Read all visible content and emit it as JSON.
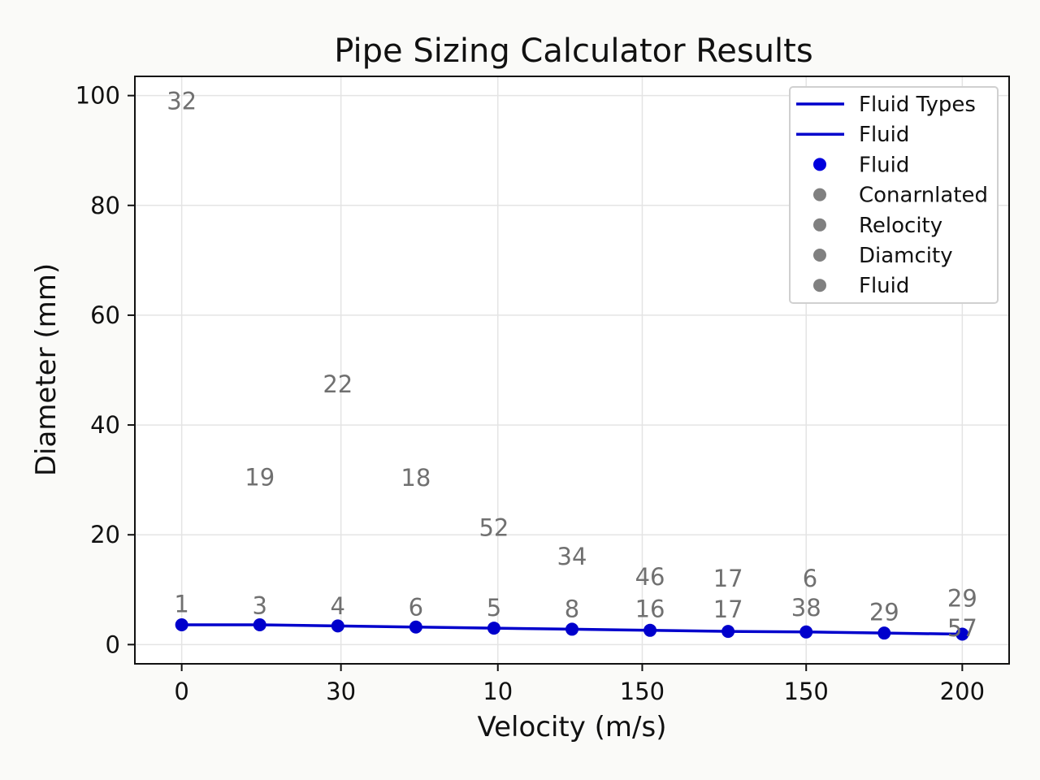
{
  "chart_data": {
    "type": "line",
    "title": "Pipe Sizing Calculator Results",
    "xlabel": "Velocity (m/s)",
    "ylabel": "Diameter (mm)",
    "x": [
      0,
      1,
      2,
      3,
      4,
      5,
      6,
      7,
      8,
      9,
      10
    ],
    "xlim": [
      -0.6,
      10.6
    ],
    "x_ticks": [
      {
        "at": 0,
        "label": "0"
      },
      {
        "at": 2.04,
        "label": "30"
      },
      {
        "at": 4.05,
        "label": "10"
      },
      {
        "at": 5.9,
        "label": "150"
      },
      {
        "at": 8.0,
        "label": "150"
      },
      {
        "at": 10,
        "label": "200"
      }
    ],
    "ylim": [
      -3.5,
      103.5
    ],
    "y_ticks": [
      0,
      20,
      40,
      60,
      80,
      100
    ],
    "grid": true,
    "series": [
      {
        "values": [
          3.6,
          3.6,
          3.4,
          3.2,
          3.0,
          2.8,
          2.6,
          2.4,
          2.3,
          2.1,
          1.9
        ],
        "color": "#0000cc",
        "marker": "circle"
      }
    ],
    "annotations": [
      {
        "x": 0,
        "y": 99,
        "text": "32"
      },
      {
        "x": 1,
        "y": 30.5,
        "text": "19"
      },
      {
        "x": 2,
        "y": 47.4,
        "text": "22"
      },
      {
        "x": 3,
        "y": 30.4,
        "text": "18"
      },
      {
        "x": 4,
        "y": 21.3,
        "text": "52"
      },
      {
        "x": 5,
        "y": 16,
        "text": "34"
      },
      {
        "x": 6,
        "y": 12.3,
        "text": "46"
      },
      {
        "x": 7,
        "y": 9.8,
        "text": "17"
      },
      {
        "x": 0,
        "y": 7.4,
        "text": "1"
      },
      {
        "x": 1,
        "y": 7.1,
        "text": "3"
      },
      {
        "x": 2,
        "y": 7.0,
        "text": "4"
      },
      {
        "x": 3,
        "y": 6.8,
        "text": "6"
      },
      {
        "x": 4,
        "y": 6.7,
        "text": "5"
      },
      {
        "x": 5,
        "y": 6.5,
        "text": "8"
      },
      {
        "x": 6,
        "y": 6.5,
        "text": "16"
      },
      {
        "x": 7,
        "y": 6.4,
        "text": "17"
      },
      {
        "x": 8,
        "y": 6.7,
        "text": "38"
      },
      {
        "x": 8.05,
        "y": 7.6,
        "text": "6"
      },
      {
        "x": 9,
        "y": 5.9,
        "text": "29"
      },
      {
        "x": 10,
        "y": 5.3,
        "text": "29"
      },
      {
        "x": 10,
        "y": 3.0,
        "text": "57"
      }
    ],
    "legend": {
      "position": "top-right",
      "entries": [
        {
          "label": "Fluid Types",
          "kind": "line",
          "color": "#0000cc"
        },
        {
          "label": "Fluid",
          "kind": "line",
          "color": "#0000cc"
        },
        {
          "label": "Fluid",
          "kind": "dot",
          "color": "#0000dd"
        },
        {
          "label": "Conarnlated",
          "kind": "dot",
          "color": "#808080"
        },
        {
          "label": "Relocity",
          "kind": "dot",
          "color": "#808080"
        },
        {
          "label": "Diamcity",
          "kind": "dot",
          "color": "#808080"
        },
        {
          "label": "Fluid",
          "kind": "dot",
          "color": "#808080"
        }
      ]
    },
    "colors": {
      "annotation": "#707070",
      "grid": "#e4e4e4"
    }
  }
}
